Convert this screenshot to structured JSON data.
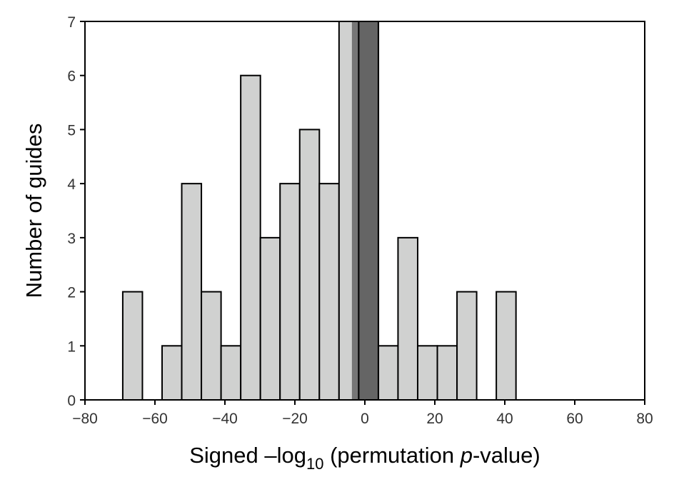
{
  "chart_data": {
    "type": "bar",
    "title": "",
    "xlabel": {
      "main": "Signed –log",
      "sub": "10",
      "rest1": " (permutation ",
      "italic": "p",
      "rest2": "-value)"
    },
    "ylabel": "Number of guides",
    "xlim": [
      -80,
      80
    ],
    "ylim": [
      0,
      7
    ],
    "xticks": [
      -80,
      -60,
      -40,
      -20,
      0,
      20,
      40,
      60,
      80
    ],
    "xtick_labels": [
      "−80",
      "−60",
      "−40",
      "−20",
      "0",
      "20",
      "40",
      "60",
      "80"
    ],
    "yticks": [
      0,
      1,
      2,
      3,
      4,
      5,
      6,
      7
    ],
    "bin_start": -69.2,
    "bin_width": 5.62,
    "counts": [
      2,
      0,
      1,
      4,
      2,
      1,
      6,
      3,
      4,
      5,
      4,
      7,
      7,
      1,
      3,
      1,
      1,
      2,
      0,
      2
    ],
    "highlight_bins": [
      12
    ],
    "shaded_span": [
      -3.7,
      4.1
    ],
    "colors": {
      "bar": "#d0d1d0",
      "highlight": "#5f5f5f",
      "span": "#666666",
      "edge": "#000000"
    },
    "grid": false
  }
}
